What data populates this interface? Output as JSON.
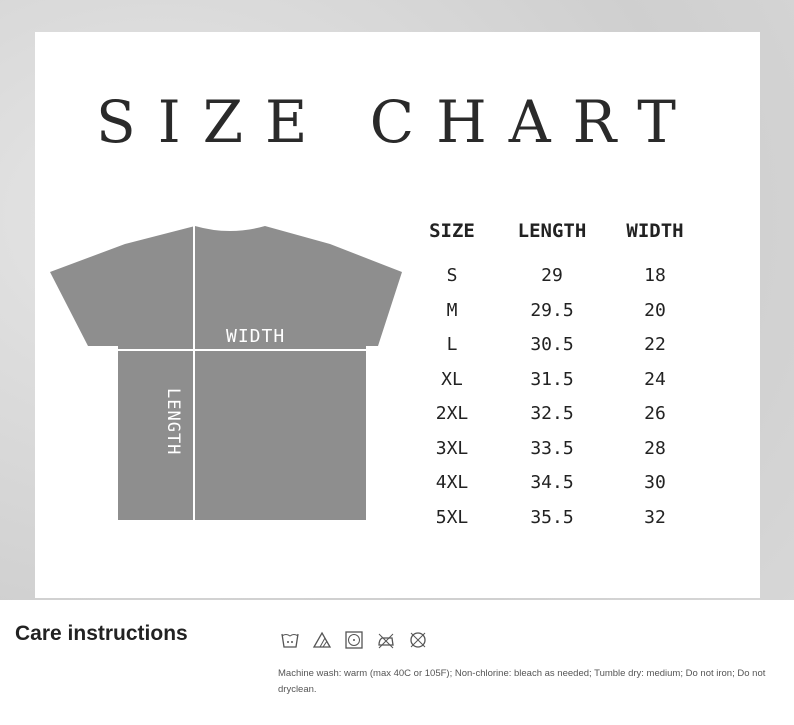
{
  "title": "SIZE CHART",
  "diagram": {
    "width_label": "WIDTH",
    "length_label": "LENGTH",
    "shirt_color": "#8e8e8e"
  },
  "table": {
    "headers": [
      "SIZE",
      "LENGTH",
      "WIDTH"
    ],
    "rows": [
      [
        "S",
        "29",
        "18"
      ],
      [
        "M",
        "29.5",
        "20"
      ],
      [
        "L",
        "30.5",
        "22"
      ],
      [
        "XL",
        "31.5",
        "24"
      ],
      [
        "2XL",
        "32.5",
        "26"
      ],
      [
        "3XL",
        "33.5",
        "28"
      ],
      [
        "4XL",
        "34.5",
        "30"
      ],
      [
        "5XL",
        "35.5",
        "32"
      ]
    ]
  },
  "care": {
    "heading": "Care instructions",
    "icons": [
      "machine-wash-warm-icon",
      "non-chlorine-bleach-icon",
      "tumble-dry-medium-icon",
      "do-not-iron-icon",
      "do-not-dryclean-icon"
    ],
    "description": "Machine wash: warm (max 40C or 105F); Non-chlorine: bleach as needed; Tumble dry: medium; Do not iron; Do not dryclean."
  }
}
